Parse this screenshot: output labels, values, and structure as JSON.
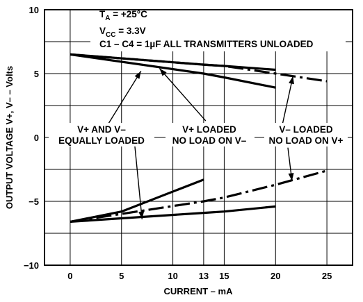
{
  "chart_data": {
    "type": "line",
    "xlabel": "CURRENT – mA",
    "ylabel": "OUTPUT VOLTAGE V+, V– – Volts",
    "x_ticks": [
      "0",
      "5",
      "10",
      "13",
      "15",
      "20",
      "25"
    ],
    "x_tick_values": [
      0,
      5,
      10,
      13,
      15,
      20,
      25
    ],
    "y_ticks": [
      "10",
      "5",
      "0",
      "−5",
      "−10"
    ],
    "y_tick_values": [
      10,
      5,
      0,
      -5,
      -10
    ],
    "xlim": [
      -2.5,
      27.5
    ],
    "ylim": [
      -10,
      10
    ],
    "grid": true,
    "conditions": {
      "ta_main": "T",
      "ta_sub": "A",
      "ta_rest": " = +25°C",
      "vcc_main": "V",
      "vcc_sub": "CC",
      "vcc_rest": " = 3.3V",
      "caps": "C1 – C4 = 1µF ALL TRANSMITTERS UNLOADED"
    },
    "annotations": [
      {
        "line1": "V+ AND V–",
        "line2": "EQUALLY LOADED"
      },
      {
        "line1": "V+ LOADED",
        "line2": "NO LOAD ON V–"
      },
      {
        "line1": "V– LOADED",
        "line2": "NO LOAD ON V+"
      }
    ],
    "series": [
      {
        "style": "solid",
        "x": [
          0,
          13,
          15,
          20
        ],
        "y": [
          6.5,
          5.0,
          4.7,
          3.9
        ]
      },
      {
        "style": "solid",
        "x": [
          0,
          5,
          13
        ],
        "y": [
          -6.6,
          -5.8,
          -3.3
        ]
      },
      {
        "style": "solid",
        "x": [
          0,
          13,
          15,
          20
        ],
        "y": [
          6.5,
          5.7,
          5.6,
          5.3
        ]
      },
      {
        "style": "solid",
        "x": [
          0,
          13,
          15,
          20
        ],
        "y": [
          -6.6,
          -5.9,
          -5.8,
          -5.4
        ]
      },
      {
        "style": "dashed",
        "x": [
          0,
          13,
          15,
          20,
          25
        ],
        "y": [
          6.5,
          5.7,
          5.6,
          5.0,
          4.4
        ]
      },
      {
        "style": "dashed",
        "x": [
          0,
          13,
          15,
          20,
          25
        ],
        "y": [
          -6.6,
          -5.0,
          -4.7,
          -3.7,
          -2.6
        ]
      }
    ],
    "arrows": [
      {
        "from": [
          3.2,
          0.4
        ],
        "to": [
          6.9,
          5.2
        ]
      },
      {
        "from": [
          6.3,
          -0.7
        ],
        "to": [
          7.0,
          -6.4
        ]
      },
      {
        "from": [
          13.2,
          1.3
        ],
        "to": [
          8.7,
          5.4
        ]
      },
      {
        "from": [
          20.5,
          0.4
        ],
        "to": [
          21.7,
          4.8
        ]
      },
      {
        "from": [
          21.2,
          -0.8
        ],
        "to": [
          21.6,
          -3.4
        ]
      }
    ]
  }
}
